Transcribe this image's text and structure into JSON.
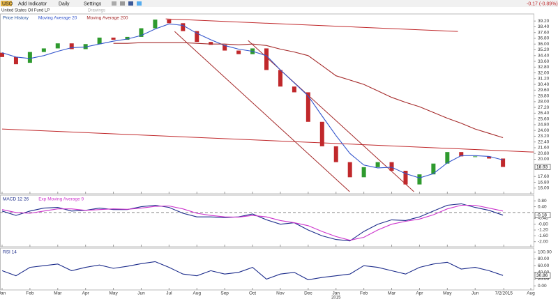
{
  "toolbar": {
    "symbol": "USO",
    "add_indicator": "Add Indicator",
    "interval": "Daily",
    "settings": "Settings",
    "change": "-0.17 (-0.89%)",
    "subtitle": "United States Oil Fund LP",
    "drawings": "Drawings"
  },
  "chart_data": [
    {
      "type": "candlestick",
      "x": [
        0,
        0.5,
        1,
        1.5,
        2,
        2.5,
        3,
        3.5,
        4,
        4.5,
        5,
        5.5,
        6,
        6.5,
        7,
        7.5,
        8,
        8.5,
        9,
        9.5,
        10,
        10.5,
        11,
        11.5,
        12,
        12.5,
        13,
        13.5,
        14,
        14.5,
        15,
        15.5,
        16,
        16.5,
        17,
        17.5,
        18
      ],
      "xlim": [
        0,
        19.1
      ],
      "ylim": [
        15.4,
        39.8
      ],
      "yticks": [
        {
          "value": 39.2,
          "label": "39.20"
        },
        {
          "value": 38.4,
          "label": "38.40"
        },
        {
          "value": 37.6,
          "label": "37.60"
        },
        {
          "value": 36.8,
          "label": "36.80"
        },
        {
          "value": 36,
          "label": "36.00"
        },
        {
          "value": 35.2,
          "label": "35.20"
        },
        {
          "value": 34.4,
          "label": "34.40"
        },
        {
          "value": 33.6,
          "label": "33.60"
        },
        {
          "value": 32.8,
          "label": "32.80"
        },
        {
          "value": 32,
          "label": "32.00"
        },
        {
          "value": 31.2,
          "label": "31.20"
        },
        {
          "value": 30.4,
          "label": "30.40"
        },
        {
          "value": 29.6,
          "label": "29.60"
        },
        {
          "value": 28.8,
          "label": "28.80"
        },
        {
          "value": 28,
          "label": "28.00"
        },
        {
          "value": 27.2,
          "label": "27.20"
        },
        {
          "value": 26.4,
          "label": "26.40"
        },
        {
          "value": 25.6,
          "label": "25.60"
        },
        {
          "value": 24.8,
          "label": "24.80"
        },
        {
          "value": 24,
          "label": "24.00"
        },
        {
          "value": 23.2,
          "label": "23.20"
        },
        {
          "value": 22.4,
          "label": "22.40"
        },
        {
          "value": 21.6,
          "label": "21.60"
        },
        {
          "value": 20.8,
          "label": "20.80"
        },
        {
          "value": 20,
          "label": "20.00"
        },
        {
          "value": 17.6,
          "label": "17.60"
        },
        {
          "value": 16.8,
          "label": "16.80"
        },
        {
          "value": 16,
          "label": "16.00"
        }
      ],
      "series": [
        {
          "name": "Price History",
          "color": "#1f4e9c",
          "up_color": "#2e9a2e",
          "down_color": "#c0282b",
          "open": [
            34.8,
            34.2,
            33.4,
            34.9,
            35.4,
            36.1,
            35.3,
            36.0,
            36.9,
            36.6,
            37.0,
            38.2,
            39.4,
            38.9,
            37.8,
            36.3,
            35.9,
            35.1,
            34.6,
            35.4,
            32.4,
            30.1,
            29.3,
            25.2,
            21.8,
            19.6,
            17.5,
            18.9,
            19.6,
            18.4,
            16.5,
            17.9,
            19.4,
            21.0,
            20.4,
            20.4,
            20.1
          ],
          "close": [
            34.2,
            33.2,
            34.9,
            35.4,
            36.1,
            35.3,
            36.0,
            36.9,
            36.6,
            37.0,
            38.2,
            39.4,
            38.9,
            37.8,
            36.3,
            35.9,
            35.1,
            34.6,
            35.4,
            32.4,
            30.1,
            29.3,
            25.2,
            21.8,
            19.6,
            17.5,
            18.9,
            19.6,
            18.4,
            16.5,
            17.9,
            19.4,
            21.0,
            20.4,
            20.4,
            20.1,
            18.93
          ]
        },
        {
          "name": "Moving Average 20",
          "color": "#3355cc",
          "values": [
            34.8,
            34.2,
            34.0,
            34.4,
            35.0,
            35.5,
            35.6,
            36.0,
            36.4,
            36.7,
            37.2,
            38.1,
            38.8,
            38.6,
            37.5,
            36.6,
            35.8,
            35.3,
            35.0,
            34.4,
            32.4,
            30.6,
            28.8,
            26.0,
            23.3,
            20.8,
            19.2,
            18.8,
            18.9,
            18.0,
            17.4,
            18.0,
            19.5,
            20.5,
            20.5,
            20.4,
            19.9
          ]
        },
        {
          "name": "Moving Average 200",
          "color": "#a52a2a",
          "values": [
            null,
            null,
            null,
            null,
            null,
            null,
            null,
            null,
            36.1,
            36.1,
            36.2,
            36.2,
            36.2,
            36.2,
            36.1,
            36.0,
            36.0,
            35.9,
            36.0,
            35.8,
            35.3,
            34.9,
            34.4,
            33.0,
            31.6,
            31.0,
            30.4,
            29.5,
            28.6,
            27.9,
            27.3,
            26.5,
            25.7,
            25.0,
            24.2,
            23.6,
            23.0
          ]
        }
      ],
      "trendlines": [
        {
          "color": "#c0282b",
          "x": [
            0,
            19.1
          ],
          "y": [
            24.2,
            21.0
          ]
        },
        {
          "color": "#c0282b",
          "x": [
            5.88,
            16.38
          ],
          "y": [
            39.5,
            37.75
          ]
        },
        {
          "color": "#a52a2a",
          "x": [
            6.2,
            12.49
          ],
          "y": [
            37.75,
            15.5
          ]
        },
        {
          "color": "#a52a2a",
          "x": [
            8.84,
            14.8
          ],
          "y": [
            36.5,
            15.5
          ]
        }
      ],
      "last_value": 18.93
    },
    {
      "type": "line",
      "x": [
        0,
        0.5,
        1,
        1.5,
        2,
        2.5,
        3,
        3.5,
        4,
        4.5,
        5,
        5.5,
        6,
        6.5,
        7,
        7.5,
        8,
        8.5,
        9,
        9.5,
        10,
        10.5,
        11,
        11.5,
        12,
        12.5,
        13,
        13.5,
        14,
        14.5,
        15,
        15.5,
        16,
        16.5,
        17,
        17.5,
        18
      ],
      "xlim": [
        0,
        19.1
      ],
      "ylim": [
        -2.25,
        1.0
      ],
      "yticks": [
        {
          "value": 0.8,
          "label": "0.80"
        },
        {
          "value": 0.4,
          "label": "0.40"
        },
        {
          "value": -0.4,
          "label": "-0.40"
        },
        {
          "value": -0.8,
          "label": "-0.80"
        },
        {
          "value": -1.2,
          "label": "-1.20"
        },
        {
          "value": -1.6,
          "label": "-1.60"
        },
        {
          "value": -2,
          "label": "-2.00"
        }
      ],
      "reference_line": 0,
      "series": [
        {
          "name": "MACD 12 26",
          "color": "#1a2a8a",
          "values": [
            0.1,
            -0.2,
            0.1,
            0.3,
            0.35,
            0.1,
            0.15,
            0.3,
            0.2,
            0.2,
            0.4,
            0.5,
            0.35,
            -0.05,
            -0.3,
            -0.3,
            -0.35,
            -0.3,
            -0.1,
            -0.5,
            -0.8,
            -0.7,
            -1.2,
            -1.6,
            -1.85,
            -1.95,
            -1.3,
            -0.8,
            -0.5,
            -0.55,
            -0.3,
            0.1,
            0.5,
            0.6,
            0.35,
            0.15,
            -0.18
          ]
        },
        {
          "name": "Exp Moving Average 9",
          "color": "#cc33cc",
          "values": [
            0.2,
            0.0,
            -0.05,
            0.1,
            0.25,
            0.25,
            0.15,
            0.2,
            0.25,
            0.22,
            0.3,
            0.42,
            0.45,
            0.25,
            -0.05,
            -0.2,
            -0.3,
            -0.32,
            -0.2,
            -0.3,
            -0.55,
            -0.7,
            -0.9,
            -1.3,
            -1.65,
            -1.9,
            -1.7,
            -1.2,
            -0.8,
            -0.6,
            -0.45,
            -0.15,
            0.25,
            0.5,
            0.5,
            0.3,
            0.1
          ]
        }
      ],
      "last_value": -0.18
    },
    {
      "type": "line",
      "x": [
        0,
        0.5,
        1,
        1.5,
        2,
        2.5,
        3,
        3.5,
        4,
        4.5,
        5,
        5.5,
        6,
        6.5,
        7,
        7.5,
        8,
        8.5,
        9,
        9.5,
        10,
        10.5,
        11,
        11.5,
        12,
        12.5,
        13,
        13.5,
        14,
        14.5,
        15,
        15.5,
        16,
        16.5,
        17,
        17.5,
        18
      ],
      "xlim": [
        0,
        19.1
      ],
      "ylim": [
        -8,
        108
      ],
      "yticks": [
        {
          "value": 100,
          "label": "100.00"
        },
        {
          "value": 80,
          "label": "80.00"
        },
        {
          "value": 60,
          "label": "60.00"
        },
        {
          "value": 40,
          "label": "40.00"
        },
        {
          "value": 20,
          "label": "20.00"
        },
        {
          "value": 0,
          "label": "0.00"
        }
      ],
      "series": [
        {
          "name": "RSI 14",
          "color": "#1a2a8a",
          "values": [
            45,
            30,
            55,
            60,
            65,
            45,
            55,
            62,
            52,
            58,
            66,
            72,
            55,
            35,
            30,
            45,
            35,
            40,
            55,
            20,
            35,
            40,
            18,
            25,
            30,
            35,
            60,
            55,
            45,
            35,
            55,
            65,
            70,
            50,
            55,
            45,
            30.86
          ]
        }
      ],
      "last_value": 30.86,
      "xticks": [
        {
          "value": 0,
          "label": "Jan"
        },
        {
          "value": 1,
          "label": "Feb"
        },
        {
          "value": 2,
          "label": "Mar"
        },
        {
          "value": 3,
          "label": "Apr"
        },
        {
          "value": 4,
          "label": "May"
        },
        {
          "value": 5,
          "label": "Jun"
        },
        {
          "value": 6,
          "label": "Jul"
        },
        {
          "value": 7,
          "label": "Aug"
        },
        {
          "value": 8,
          "label": "Sep"
        },
        {
          "value": 9,
          "label": "Oct"
        },
        {
          "value": 10,
          "label": "Nov"
        },
        {
          "value": 11,
          "label": "Dec"
        },
        {
          "value": 12,
          "label": "Jan"
        },
        {
          "value": 13,
          "label": "Feb"
        },
        {
          "value": 14,
          "label": "Mar"
        },
        {
          "value": 15,
          "label": "Apr"
        },
        {
          "value": 16,
          "label": "May"
        },
        {
          "value": 17,
          "label": "Jun"
        },
        {
          "value": 18.03,
          "label": "7/2/2015"
        },
        {
          "value": 19,
          "label": "Aug"
        }
      ],
      "year_label": "2015"
    }
  ]
}
